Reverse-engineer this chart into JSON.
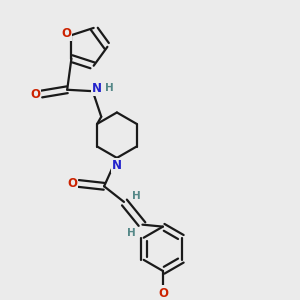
{
  "bg_color": "#ebebeb",
  "atom_color_N": "#2222cc",
  "atom_color_O": "#cc2200",
  "atom_color_H": "#558888",
  "bond_color": "#1a1a1a",
  "bond_width": 1.6,
  "figsize": [
    3.0,
    3.0
  ],
  "dpi": 100,
  "xlim": [
    0,
    10
  ],
  "ylim": [
    0,
    10
  ]
}
